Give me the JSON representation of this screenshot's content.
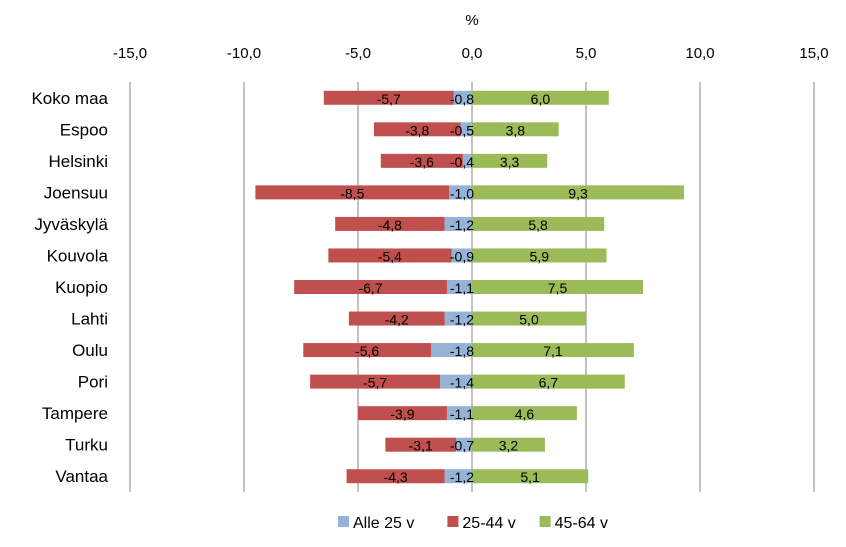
{
  "chart_data": {
    "type": "bar",
    "orientation": "horizontal",
    "stacked": "diverging",
    "title": "",
    "xlabel": "%",
    "ylabel": "",
    "xlim": [
      -15,
      15
    ],
    "xticks": [
      -15,
      -10,
      -5,
      0,
      5,
      10,
      15
    ],
    "xtick_labels": [
      "-15,0",
      "-10,0",
      "-5,0",
      "0,0",
      "5,0",
      "10,0",
      "15,0"
    ],
    "xaxis_position": "top",
    "grid": "vertical",
    "legend": "bottom",
    "categories": [
      "Koko maa",
      "Espoo",
      "Helsinki",
      "Joensuu",
      "Jyväskylä",
      "Kouvola",
      "Kuopio",
      "Lahti",
      "Oulu",
      "Pori",
      "Tampere",
      "Turku",
      "Vantaa"
    ],
    "series": [
      {
        "name": "Alle 25 v",
        "color": "#95b3d7",
        "values": [
          -0.8,
          -0.5,
          -0.4,
          -1.0,
          -1.2,
          -0.9,
          -1.1,
          -1.2,
          -1.8,
          -1.4,
          -1.1,
          -0.7,
          -1.2
        ],
        "labels": [
          "-0,8",
          "-0,5",
          "-0,4",
          "-1,0",
          "-1,2",
          "-0,9",
          "-1,1",
          "-1,2",
          "-1,8",
          "-1,4",
          "-1,1",
          "-0,7",
          "-1,2"
        ]
      },
      {
        "name": "25-44 v",
        "color": "#c0504d",
        "values": [
          -5.7,
          -3.8,
          -3.6,
          -8.5,
          -4.8,
          -5.4,
          -6.7,
          -4.2,
          -5.6,
          -5.7,
          -3.9,
          -3.1,
          -4.3
        ],
        "labels": [
          "-5,7",
          "-3,8",
          "-3,6",
          "-8,5",
          "-4,8",
          "-5,4",
          "-6,7",
          "-4,2",
          "-5,6",
          "-5,7",
          "-3,9",
          "-3,1",
          "-4,3"
        ]
      },
      {
        "name": "45-64 v",
        "color": "#9bbb59",
        "values": [
          6.0,
          3.8,
          3.3,
          9.3,
          5.8,
          5.9,
          7.5,
          5.0,
          7.1,
          6.7,
          4.6,
          3.2,
          5.1
        ],
        "labels": [
          "6,0",
          "3,8",
          "3,3",
          "9,3",
          "5,8",
          "5,9",
          "7,5",
          "5,0",
          "7,1",
          "6,7",
          "4,6",
          "3,2",
          "5,1"
        ]
      }
    ]
  }
}
